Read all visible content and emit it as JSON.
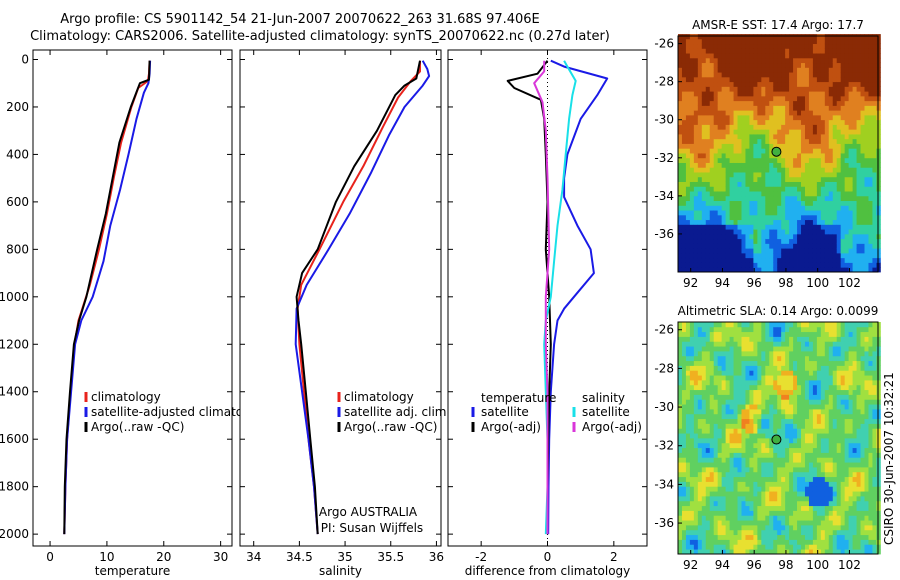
{
  "header": {
    "line1": "Argo profile: CS 5901142_54 21-Jun-2007 20070622_263 31.68S 97.406E",
    "line2": "Climatology: CARS2006. Satellite-adjusted climatology: synTS_20070622.nc (0.27d later)"
  },
  "side_label": "CSIRO 30-Jun-2007 10:32:21",
  "colors": {
    "red": "#e8231c",
    "blue": "#1a1ae6",
    "black": "#000000",
    "cyan": "#19e0e8",
    "magenta": "#d936d9"
  },
  "chart_data": [
    {
      "type": "line",
      "id": "temperature",
      "xlabel": "temperature",
      "ylabel": "",
      "xlim": [
        -3,
        32
      ],
      "ylim": [
        2050,
        -40
      ],
      "xticks": [
        0,
        10,
        20,
        30
      ],
      "yticks": [
        0,
        200,
        400,
        600,
        800,
        1000,
        1200,
        1400,
        1600,
        1800,
        2000
      ],
      "legend": [
        {
          "label": "climatology",
          "color": "#e8231c"
        },
        {
          "label": "satellite-adjusted climatology",
          "color": "#1a1ae6"
        },
        {
          "label": "Argo(..raw -QC)",
          "color": "#000000"
        }
      ],
      "series": [
        {
          "name": "climatology",
          "color": "#e8231c",
          "points": [
            [
              17.5,
              5
            ],
            [
              17.4,
              60
            ],
            [
              17.2,
              90
            ],
            [
              15.5,
              120
            ],
            [
              14.3,
              200
            ],
            [
              12.5,
              350
            ],
            [
              11.2,
              500
            ],
            [
              10.0,
              650
            ],
            [
              8.6,
              800
            ],
            [
              7.0,
              950
            ],
            [
              5.0,
              1100
            ],
            [
              4.3,
              1200
            ],
            [
              3.6,
              1400
            ],
            [
              3.0,
              1600
            ],
            [
              2.7,
              1800
            ],
            [
              2.5,
              2000
            ]
          ]
        },
        {
          "name": "satellite-adjusted climatology",
          "color": "#1a1ae6",
          "points": [
            [
              17.6,
              5
            ],
            [
              17.5,
              60
            ],
            [
              17.3,
              100
            ],
            [
              16.5,
              140
            ],
            [
              15.2,
              250
            ],
            [
              13.8,
              400
            ],
            [
              12.3,
              550
            ],
            [
              10.6,
              700
            ],
            [
              9.4,
              850
            ],
            [
              7.5,
              1000
            ],
            [
              5.5,
              1100
            ],
            [
              4.4,
              1200
            ],
            [
              3.7,
              1400
            ],
            [
              3.0,
              1600
            ],
            [
              2.7,
              1800
            ],
            [
              2.5,
              2000
            ]
          ]
        },
        {
          "name": "Argo(..raw -QC)",
          "color": "#000000",
          "points": [
            [
              17.5,
              5
            ],
            [
              17.4,
              85
            ],
            [
              15.8,
              100
            ],
            [
              14.2,
              200
            ],
            [
              12.2,
              350
            ],
            [
              11.0,
              500
            ],
            [
              9.8,
              650
            ],
            [
              8.3,
              800
            ],
            [
              6.4,
              1000
            ],
            [
              5.1,
              1100
            ],
            [
              4.2,
              1200
            ],
            [
              3.5,
              1400
            ],
            [
              2.9,
              1600
            ],
            [
              2.6,
              1800
            ],
            [
              2.5,
              2000
            ]
          ]
        }
      ]
    },
    {
      "type": "line",
      "id": "salinity",
      "xlabel": "salinity",
      "ylabel": "",
      "xlim": [
        33.85,
        36.05
      ],
      "ylim": [
        2050,
        -40
      ],
      "xticks": [
        34,
        34.5,
        35,
        35.5,
        36
      ],
      "yticks": [
        0,
        200,
        400,
        600,
        800,
        1000,
        1200,
        1400,
        1600,
        1800,
        2000
      ],
      "legend": [
        {
          "label": "climatology",
          "color": "#e8231c"
        },
        {
          "label": "satellite adj. clim.",
          "color": "#1a1ae6"
        },
        {
          "label": "Argo(..raw -QC)",
          "color": "#000000"
        }
      ],
      "annotation": [
        "Argo AUSTRALIA",
        "PI: Susan Wijffels"
      ],
      "series": [
        {
          "name": "climatology",
          "color": "#e8231c",
          "points": [
            [
              35.82,
              5
            ],
            [
              35.82,
              50
            ],
            [
              35.72,
              90
            ],
            [
              35.58,
              160
            ],
            [
              35.42,
              280
            ],
            [
              35.2,
              450
            ],
            [
              34.98,
              600
            ],
            [
              34.72,
              800
            ],
            [
              34.52,
              950
            ],
            [
              34.48,
              1050
            ],
            [
              34.5,
              1200
            ],
            [
              34.55,
              1400
            ],
            [
              34.6,
              1600
            ],
            [
              34.66,
              1800
            ],
            [
              34.7,
              2000
            ]
          ]
        },
        {
          "name": "satellite adj. clim.",
          "color": "#1a1ae6",
          "points": [
            [
              35.85,
              5
            ],
            [
              35.9,
              40
            ],
            [
              35.92,
              70
            ],
            [
              35.85,
              110
            ],
            [
              35.65,
              200
            ],
            [
              35.48,
              320
            ],
            [
              35.28,
              480
            ],
            [
              35.05,
              650
            ],
            [
              34.82,
              800
            ],
            [
              34.58,
              950
            ],
            [
              34.47,
              1050
            ],
            [
              34.46,
              1200
            ],
            [
              34.53,
              1400
            ],
            [
              34.6,
              1600
            ],
            [
              34.66,
              1800
            ],
            [
              34.7,
              2000
            ]
          ]
        },
        {
          "name": "Argo(..raw -QC)",
          "color": "#000000",
          "points": [
            [
              35.82,
              5
            ],
            [
              35.78,
              80
            ],
            [
              35.65,
              110
            ],
            [
              35.55,
              150
            ],
            [
              35.35,
              300
            ],
            [
              35.1,
              450
            ],
            [
              34.9,
              600
            ],
            [
              34.7,
              800
            ],
            [
              34.53,
              900
            ],
            [
              34.47,
              1000
            ],
            [
              34.49,
              1100
            ],
            [
              34.52,
              1200
            ],
            [
              34.57,
              1400
            ],
            [
              34.62,
              1600
            ],
            [
              34.67,
              1800
            ],
            [
              34.7,
              2000
            ]
          ]
        }
      ]
    },
    {
      "type": "line",
      "id": "difference",
      "xlabel": "difference from climatology",
      "ylabel": "",
      "xlim": [
        -3,
        3
      ],
      "ylim": [
        2050,
        -40
      ],
      "xticks": [
        -2,
        0,
        2
      ],
      "yticks": [
        0,
        200,
        400,
        600,
        800,
        1000,
        1200,
        1400,
        1600,
        1800,
        2000
      ],
      "legend_titles": [
        "temperature",
        "salinity"
      ],
      "legend": [
        {
          "label": "satellite",
          "color": "#1a1ae6"
        },
        {
          "label": "Argo(-adj)",
          "color": "#000000"
        },
        {
          "label": "satellite",
          "color": "#19e0e8"
        },
        {
          "label": "Argo(-adj)",
          "color": "#d936d9"
        }
      ],
      "series": [
        {
          "name": "temperature satellite",
          "color": "#1a1ae6",
          "points": [
            [
              0.1,
              5
            ],
            [
              0.5,
              30
            ],
            [
              1.8,
              80
            ],
            [
              1.5,
              150
            ],
            [
              1.0,
              250
            ],
            [
              0.6,
              400
            ],
            [
              0.5,
              500
            ],
            [
              0.5,
              580
            ],
            [
              0.9,
              700
            ],
            [
              1.3,
              800
            ],
            [
              1.4,
              900
            ],
            [
              0.8,
              1000
            ],
            [
              0.5,
              1050
            ],
            [
              0.3,
              1100
            ],
            [
              0.2,
              1200
            ],
            [
              0.1,
              1400
            ],
            [
              0.05,
              1600
            ],
            [
              0.03,
              1800
            ],
            [
              0.02,
              2000
            ]
          ]
        },
        {
          "name": "temperature Argo(-adj)",
          "color": "#000000",
          "points": [
            [
              0.0,
              5
            ],
            [
              -0.3,
              60
            ],
            [
              -1.2,
              90
            ],
            [
              -1.0,
              120
            ],
            [
              -0.2,
              170
            ],
            [
              -0.1,
              250
            ],
            [
              -0.05,
              400
            ],
            [
              0.0,
              600
            ],
            [
              -0.05,
              800
            ],
            [
              0.05,
              1000
            ],
            [
              0.1,
              1200
            ],
            [
              0.05,
              1400
            ],
            [
              0.02,
              1600
            ],
            [
              0.0,
              1800
            ],
            [
              0.0,
              2000
            ]
          ]
        },
        {
          "name": "salinity satellite",
          "color": "#19e0e8",
          "points": [
            [
              0.5,
              5
            ],
            [
              0.6,
              30
            ],
            [
              0.85,
              90
            ],
            [
              0.75,
              150
            ],
            [
              0.65,
              250
            ],
            [
              0.55,
              400
            ],
            [
              0.45,
              550
            ],
            [
              0.3,
              700
            ],
            [
              0.2,
              850
            ],
            [
              0.1,
              1000
            ],
            [
              -0.05,
              1100
            ],
            [
              -0.1,
              1200
            ],
            [
              -0.05,
              1400
            ],
            [
              0.0,
              1600
            ],
            [
              0.0,
              1800
            ],
            [
              -0.05,
              2000
            ]
          ]
        },
        {
          "name": "salinity Argo(-adj)",
          "color": "#d936d9",
          "points": [
            [
              -0.1,
              5
            ],
            [
              -0.1,
              50
            ],
            [
              -0.4,
              100
            ],
            [
              -0.15,
              180
            ],
            [
              -0.05,
              300
            ],
            [
              0.0,
              500
            ],
            [
              0.05,
              800
            ],
            [
              -0.05,
              1000
            ],
            [
              -0.05,
              1200
            ],
            [
              0.0,
              1400
            ],
            [
              0.0,
              1600
            ],
            [
              0.0,
              1800
            ],
            [
              0.0,
              2000
            ]
          ]
        }
      ]
    },
    {
      "type": "heatmap",
      "id": "sst",
      "title": "AMSR-E SST: 17.4 Argo: 17.7",
      "xlim": [
        91.2,
        103.8
      ],
      "ylim": [
        -38,
        -25.6
      ],
      "xticks": [
        92,
        94,
        96,
        98,
        100,
        102
      ],
      "yticks": [
        -26,
        -28,
        -30,
        -32,
        -34,
        -36
      ],
      "marker": {
        "lon": 97.4,
        "lat": -31.68,
        "color": "#40b040"
      },
      "colors": [
        "#0a1a90",
        "#1060e0",
        "#20b0f0",
        "#30d0a0",
        "#50c040",
        "#a0d020",
        "#e0c020",
        "#e08020",
        "#c05010",
        "#8a2a05"
      ]
    },
    {
      "type": "heatmap",
      "id": "sla",
      "title": "Altimetric SLA: 0.14 Argo: 0.0099",
      "xlim": [
        91.2,
        103.8
      ],
      "ylim": [
        -37.6,
        -25.6
      ],
      "xticks": [
        92,
        94,
        96,
        98,
        100,
        102
      ],
      "yticks": [
        -26,
        -28,
        -30,
        -32,
        -34,
        -36
      ],
      "marker": {
        "lon": 97.4,
        "lat": -31.68,
        "color": "#40b040"
      },
      "colors": [
        "#1060e0",
        "#20b0f0",
        "#40d0b0",
        "#60d060",
        "#a0e040",
        "#e8e030",
        "#f0b020",
        "#f08020"
      ]
    }
  ]
}
